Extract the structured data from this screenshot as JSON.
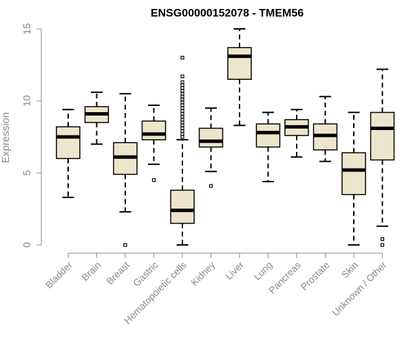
{
  "chart_data": {
    "type": "boxplot",
    "title": "ENSG00000152078 - TMEM56",
    "ylabel": "Expression",
    "xlabel": "",
    "ylim": [
      0,
      15
    ],
    "yticks": [
      0,
      5,
      10,
      15
    ],
    "grid": false,
    "legend": "none",
    "colors": {
      "box_fill": "#ede6cc",
      "box_stroke": "#000000",
      "median": "#000000",
      "axis": "#8a8a8a"
    },
    "categories": [
      "Bladder",
      "Brain",
      "Breast",
      "Gastric",
      "Hematopoietic cells",
      "Kidney",
      "Liver",
      "Lung",
      "Pancreas",
      "Prostate",
      "Skin",
      "Unknown / Other"
    ],
    "boxes": [
      {
        "whisker_low": 3.3,
        "q1": 6.0,
        "median": 7.5,
        "q3": 8.2,
        "whisker_high": 9.4,
        "outliers": []
      },
      {
        "whisker_low": 7.0,
        "q1": 8.5,
        "median": 9.1,
        "q3": 9.6,
        "whisker_high": 10.6,
        "outliers": []
      },
      {
        "whisker_low": 2.3,
        "q1": 4.9,
        "median": 6.1,
        "q3": 7.1,
        "whisker_high": 10.5,
        "outliers": [
          0.0
        ]
      },
      {
        "whisker_low": 5.6,
        "q1": 7.3,
        "median": 7.7,
        "q3": 8.6,
        "whisker_high": 9.7,
        "outliers": [
          4.5
        ]
      },
      {
        "whisker_low": 0.0,
        "q1": 1.5,
        "median": 2.4,
        "q3": 3.8,
        "whisker_high": 7.3,
        "outliers": [
          7.5,
          7.7,
          7.9,
          8.1,
          8.3,
          8.5,
          8.7,
          8.9,
          9.1,
          9.3,
          9.5,
          9.7,
          9.9,
          10.1,
          10.3,
          10.5,
          10.7,
          10.9,
          11.1,
          11.3,
          11.7,
          13.0
        ]
      },
      {
        "whisker_low": 5.1,
        "q1": 6.8,
        "median": 7.2,
        "q3": 8.1,
        "whisker_high": 9.5,
        "outliers": [
          4.1
        ]
      },
      {
        "whisker_low": 8.3,
        "q1": 11.5,
        "median": 13.1,
        "q3": 13.7,
        "whisker_high": 15.0,
        "outliers": []
      },
      {
        "whisker_low": 4.4,
        "q1": 6.8,
        "median": 7.8,
        "q3": 8.4,
        "whisker_high": 9.2,
        "outliers": []
      },
      {
        "whisker_low": 6.1,
        "q1": 7.6,
        "median": 8.2,
        "q3": 8.7,
        "whisker_high": 9.4,
        "outliers": []
      },
      {
        "whisker_low": 5.8,
        "q1": 6.6,
        "median": 7.6,
        "q3": 8.4,
        "whisker_high": 10.3,
        "outliers": []
      },
      {
        "whisker_low": 0.0,
        "q1": 3.5,
        "median": 5.2,
        "q3": 6.4,
        "whisker_high": 9.2,
        "outliers": []
      },
      {
        "whisker_low": 1.3,
        "q1": 5.9,
        "median": 8.1,
        "q3": 9.2,
        "whisker_high": 12.2,
        "outliers": [
          0.0,
          0.4
        ]
      }
    ]
  }
}
